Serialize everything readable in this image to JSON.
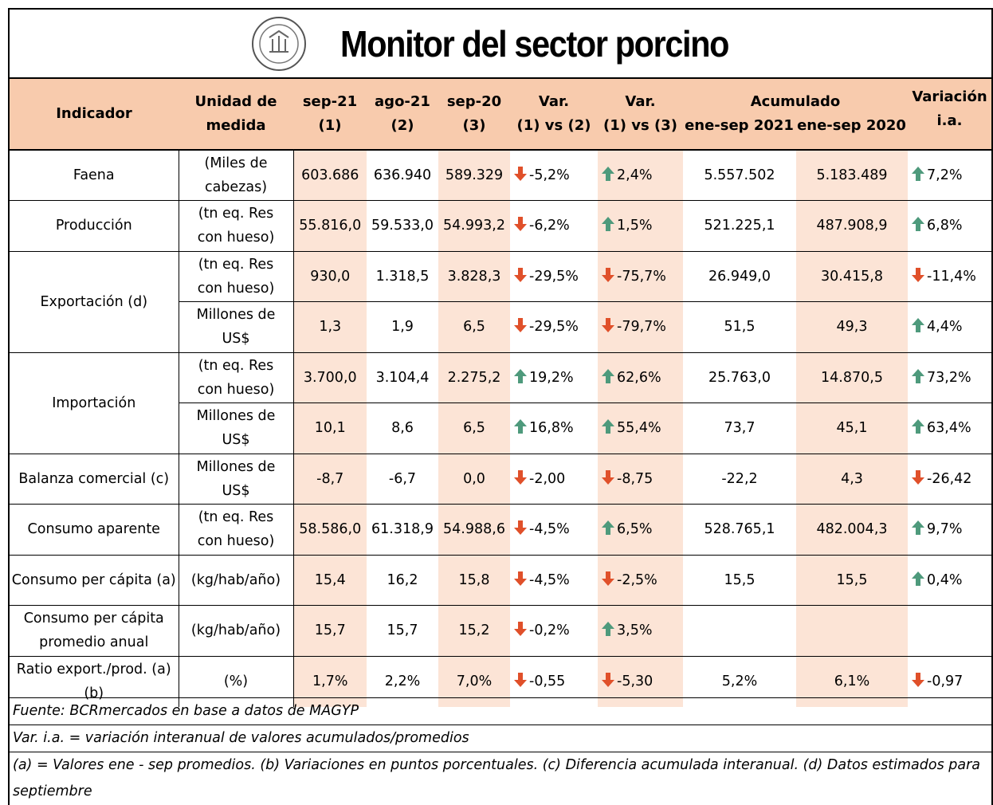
{
  "title": "Monitor del sector porcino",
  "header": {
    "indicator": "Indicador",
    "unit": [
      "Unidad de",
      "medida"
    ],
    "periods": [
      [
        "sep-21",
        "(1)"
      ],
      [
        "ago-21",
        "(2)"
      ],
      [
        "sep-20",
        "(3)"
      ],
      [
        "Var.",
        "(1) vs (2)"
      ],
      [
        "Var.",
        "(1) vs (3)"
      ]
    ],
    "accumulated": "Acumulado",
    "accumulated_periods": [
      "ene-sep 2021",
      "ene-sep 2020"
    ],
    "variation": [
      "Variación",
      "i.a."
    ]
  },
  "rows": [
    {
      "indicator": "Faena",
      "units": [
        {
          "unit": [
            "(Miles de",
            "cabezas)"
          ],
          "values": [
            "603.686",
            "636.940",
            "589.329",
            "-5,2%",
            "2,4%",
            "5.557.502",
            "5.183.489",
            "7,2%"
          ]
        }
      ]
    },
    {
      "indicator": "Producción",
      "units": [
        {
          "unit": [
            "(tn eq. Res",
            "con hueso)"
          ],
          "values": [
            "55.816,0",
            "59.533,0",
            "54.993,2",
            "-6,2%",
            "1,5%",
            "521.225,1",
            "487.908,9",
            "6,8%"
          ]
        }
      ]
    },
    {
      "indicator": "Exportación (d)",
      "units": [
        {
          "unit": [
            "(tn eq. Res",
            "con hueso)"
          ],
          "values": [
            "930,0",
            "1.318,5",
            "3.828,3",
            "-29,5%",
            "-75,7%",
            "26.949,0",
            "30.415,8",
            "-11,4%"
          ]
        },
        {
          "unit": [
            "Millones de",
            "US$"
          ],
          "values": [
            "1,3",
            "1,9",
            "6,5",
            "-29,5%",
            "-79,7%",
            "51,5",
            "49,3",
            "4,4%"
          ]
        }
      ]
    },
    {
      "indicator": "Importación",
      "units": [
        {
          "unit": [
            "(tn eq. Res",
            "con hueso)"
          ],
          "values": [
            "3.700,0",
            "3.104,4",
            "2.275,2",
            "19,2%",
            "62,6%",
            "25.763,0",
            "14.870,5",
            "73,2%"
          ]
        },
        {
          "unit": [
            "Millones de",
            "US$"
          ],
          "values": [
            "10,1",
            "8,6",
            "6,5",
            "16,8%",
            "55,4%",
            "73,7",
            "45,1",
            "63,4%"
          ]
        }
      ]
    },
    {
      "indicator": "Balanza comercial (c)",
      "units": [
        {
          "unit": [
            "Millones de",
            "US$"
          ],
          "values": [
            "-8,7",
            "-6,7",
            "0,0",
            "-2,00",
            "-8,75",
            "-22,2",
            "4,3",
            "-26,42"
          ]
        }
      ]
    },
    {
      "indicator": "Consumo aparente",
      "units": [
        {
          "unit": [
            "(tn eq. Res",
            "con hueso)"
          ],
          "values": [
            "58.586,0",
            "61.318,9",
            "54.988,6",
            "-4,5%",
            "6,5%",
            "528.765,1",
            "482.004,3",
            "9,7%"
          ]
        }
      ]
    },
    {
      "indicator": "Consumo per cápita (a)",
      "units": [
        {
          "unit": [
            "(kg/hab/año)"
          ],
          "values": [
            "15,4",
            "16,2",
            "15,8",
            "-4,5%",
            "-2,5%",
            "15,5",
            "15,5",
            "0,4%"
          ]
        }
      ]
    },
    {
      "indicator": "Consumo per cápita promedio anual",
      "units": [
        {
          "unit": [
            "(kg/hab/año)"
          ],
          "values": [
            "15,7",
            "15,7",
            "15,2",
            "-0,2%",
            "3,5%"
          ]
        }
      ]
    },
    {
      "indicator": "Ratio export./prod. (a)(b)",
      "units": [
        {
          "unit": [
            "(%)"
          ],
          "values": [
            "1,7%",
            "2,2%",
            "7,0%",
            "-0,55",
            "-5,30",
            "5,2%",
            "6,1%",
            "-0,97"
          ]
        }
      ]
    }
  ],
  "footnotes": [
    "Fuente: BCRmercados en base a datos de MAGYP",
    "Var. i.a. = variación interanual de valores acumulados/promedios",
    "(a) = Valores ene - sep promedios. (b) Variaciones en puntos porcentuales. (c) Diferencia acumulada interanual. (d) Datos estimados para septiembre"
  ]
}
